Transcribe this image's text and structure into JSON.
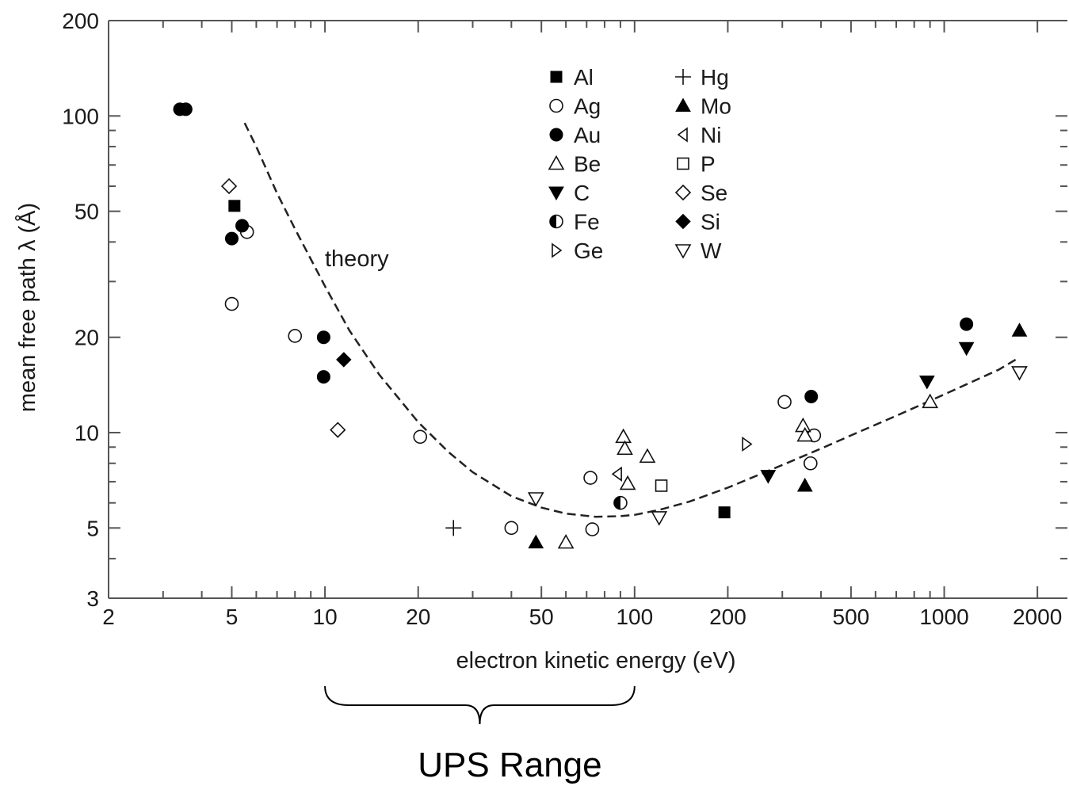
{
  "chart_data": {
    "type": "scatter",
    "xlabel": "electron kinetic energy  (eV)",
    "ylabel": "mean free path λ  (Å)",
    "xscale": "log",
    "yscale": "log",
    "xlim": [
      2,
      2500
    ],
    "ylim": [
      3,
      200
    ],
    "x_ticks": [
      {
        "value": 2,
        "label": "2"
      },
      {
        "value": 5,
        "label": "5"
      },
      {
        "value": 10,
        "label": "10"
      },
      {
        "value": 20,
        "label": "20"
      },
      {
        "value": 50,
        "label": "50"
      },
      {
        "value": 100,
        "label": "100"
      },
      {
        "value": 200,
        "label": "200"
      },
      {
        "value": 500,
        "label": "500"
      },
      {
        "value": 1000,
        "label": "1000"
      },
      {
        "value": 2000,
        "label": "2000"
      }
    ],
    "y_ticks": [
      {
        "value": 3,
        "label": "3"
      },
      {
        "value": 5,
        "label": "5"
      },
      {
        "value": 10,
        "label": "10"
      },
      {
        "value": 20,
        "label": "20"
      },
      {
        "value": 50,
        "label": "50"
      },
      {
        "value": 100,
        "label": "100"
      },
      {
        "value": 200,
        "label": "200"
      }
    ],
    "legend_position": "top-center",
    "series": [
      {
        "name": "Al",
        "marker": "square-filled",
        "points": [
          [
            5.1,
            52
          ],
          [
            195,
            5.6
          ]
        ]
      },
      {
        "name": "Ag",
        "marker": "circle-open",
        "points": [
          [
            5.0,
            25.5
          ],
          [
            5.6,
            43
          ],
          [
            8,
            20.2
          ],
          [
            20.3,
            9.7
          ],
          [
            40,
            5.0
          ],
          [
            72,
            7.2
          ],
          [
            73,
            4.95
          ],
          [
            305,
            12.5
          ],
          [
            370,
            8.0
          ],
          [
            380,
            9.8
          ]
        ]
      },
      {
        "name": "Au",
        "marker": "circle-filled",
        "points": [
          [
            3.4,
            105
          ],
          [
            3.55,
            105
          ],
          [
            5.0,
            41
          ],
          [
            5.4,
            45
          ],
          [
            9.9,
            20
          ],
          [
            9.9,
            15
          ],
          [
            372,
            13
          ],
          [
            1180,
            22
          ]
        ]
      },
      {
        "name": "Be",
        "marker": "triangle-up-open",
        "points": [
          [
            60,
            4.5
          ],
          [
            92,
            9.7
          ],
          [
            93,
            8.9
          ],
          [
            95,
            6.9
          ],
          [
            110,
            8.4
          ],
          [
            350,
            10.5
          ],
          [
            355,
            9.8
          ],
          [
            900,
            12.5
          ]
        ]
      },
      {
        "name": "C",
        "marker": "triangle-down-filled",
        "points": [
          [
            270,
            7.3
          ],
          [
            880,
            14.5
          ],
          [
            1180,
            18.5
          ]
        ]
      },
      {
        "name": "Fe",
        "marker": "circle-half",
        "points": [
          [
            90,
            6.0
          ]
        ]
      },
      {
        "name": "Ge",
        "marker": "triangle-right-open",
        "points": [
          [
            230,
            9.2
          ]
        ]
      },
      {
        "name": "Hg",
        "marker": "plus",
        "points": [
          [
            26,
            5.0
          ]
        ]
      },
      {
        "name": "Mo",
        "marker": "triangle-up-filled",
        "points": [
          [
            48,
            4.5
          ],
          [
            355,
            6.8
          ],
          [
            1750,
            21
          ]
        ]
      },
      {
        "name": "Ni",
        "marker": "triangle-left-open",
        "points": [
          [
            88,
            7.4
          ]
        ]
      },
      {
        "name": "P",
        "marker": "square-open",
        "points": [
          [
            122,
            6.8
          ]
        ]
      },
      {
        "name": "Se",
        "marker": "diamond-open",
        "points": [
          [
            4.9,
            60
          ],
          [
            11,
            10.2
          ]
        ]
      },
      {
        "name": "Si",
        "marker": "diamond-filled",
        "points": [
          [
            11.5,
            17
          ]
        ]
      },
      {
        "name": "W",
        "marker": "triangle-down-open",
        "points": [
          [
            48,
            6.2
          ],
          [
            120,
            5.4
          ],
          [
            1750,
            15.5
          ]
        ]
      }
    ],
    "theory_curve": {
      "label": "theory",
      "style": "dashed",
      "points": [
        [
          5.5,
          95
        ],
        [
          6,
          80
        ],
        [
          7,
          57
        ],
        [
          8,
          44
        ],
        [
          10,
          29
        ],
        [
          12,
          21
        ],
        [
          15,
          15.2
        ],
        [
          20,
          10.8
        ],
        [
          25,
          8.7
        ],
        [
          30,
          7.5
        ],
        [
          40,
          6.3
        ],
        [
          50,
          5.8
        ],
        [
          60,
          5.55
        ],
        [
          75,
          5.42
        ],
        [
          90,
          5.45
        ],
        [
          100,
          5.5
        ],
        [
          120,
          5.7
        ],
        [
          150,
          6.05
        ],
        [
          200,
          6.7
        ],
        [
          300,
          7.9
        ],
        [
          400,
          8.9
        ],
        [
          500,
          9.8
        ],
        [
          700,
          11.3
        ],
        [
          1000,
          13.2
        ],
        [
          1500,
          15.8
        ],
        [
          1700,
          17
        ]
      ]
    },
    "bracket": {
      "label": "UPS Range",
      "from": 10,
      "to": 100
    }
  }
}
